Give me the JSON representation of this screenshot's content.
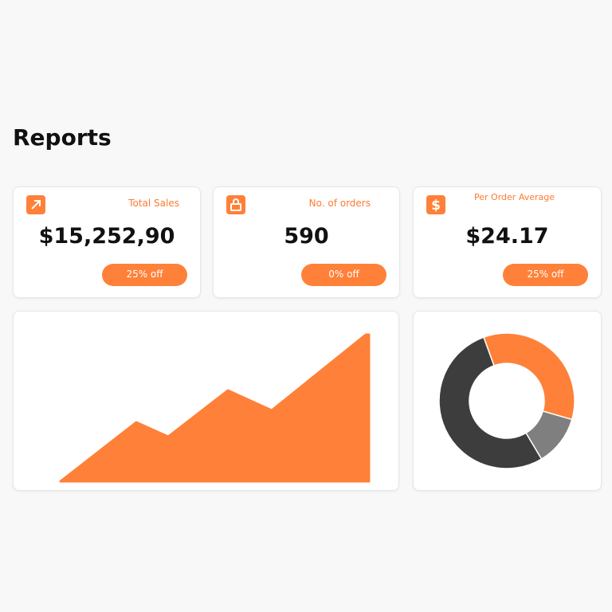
{
  "header": {
    "title": "Reports"
  },
  "cards": [
    {
      "label": "Total Sales",
      "value": "$15,252,90",
      "badge": "25% off"
    },
    {
      "label": "No. of orders",
      "value": "590",
      "badge": "0% off"
    },
    {
      "label": "Per Order Average",
      "value": "$24.17",
      "badge": "25% off"
    }
  ],
  "area_chart": {
    "type": "area",
    "color": "#ff8038",
    "x": [
      0,
      95,
      135,
      210,
      265,
      383
    ],
    "values": [
      0,
      74,
      56,
      114,
      89,
      184
    ]
  },
  "donut_chart": {
    "type": "pie",
    "colors": [
      "#ff8038",
      "#7f7f7f",
      "#3d3d3d"
    ],
    "values": [
      35,
      12,
      53
    ]
  }
}
